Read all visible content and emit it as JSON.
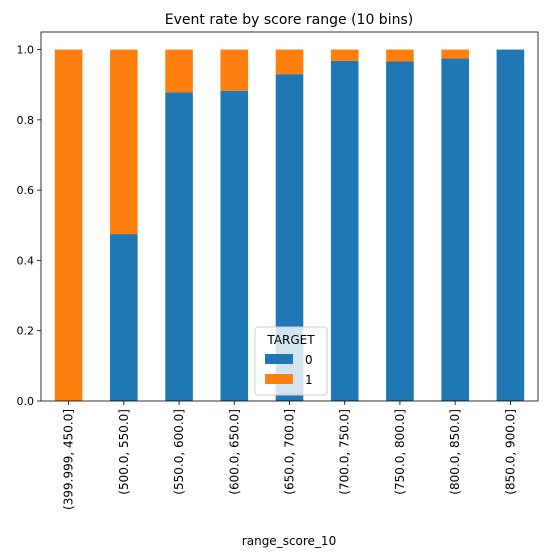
{
  "chart_data": {
    "type": "bar",
    "stacked": true,
    "title": "Event rate by score range (10 bins)",
    "xlabel": "range_score_10",
    "ylabel": "",
    "ylim": [
      0,
      1.05
    ],
    "yticks": [
      "0.0",
      "0.2",
      "0.4",
      "0.6",
      "0.8",
      "1.0"
    ],
    "grid": false,
    "categories": [
      "(399.999, 450.0]",
      "(500.0, 550.0]",
      "(550.0, 600.0]",
      "(600.0, 650.0]",
      "(650.0, 700.0]",
      "(700.0, 750.0]",
      "(750.0, 800.0]",
      "(800.0, 850.0]",
      "(850.0, 900.0]"
    ],
    "series": [
      {
        "name": "0",
        "color": "#1f77b4",
        "values": [
          0.0,
          0.475,
          0.878,
          0.883,
          0.93,
          0.968,
          0.966,
          0.975,
          1.0
        ]
      },
      {
        "name": "1",
        "color": "#ff7f0e",
        "values": [
          1.0,
          0.525,
          0.122,
          0.117,
          0.07,
          0.032,
          0.034,
          0.025,
          0.0
        ]
      }
    ],
    "legend": {
      "title": "TARGET",
      "placement": "bottom-center"
    }
  }
}
